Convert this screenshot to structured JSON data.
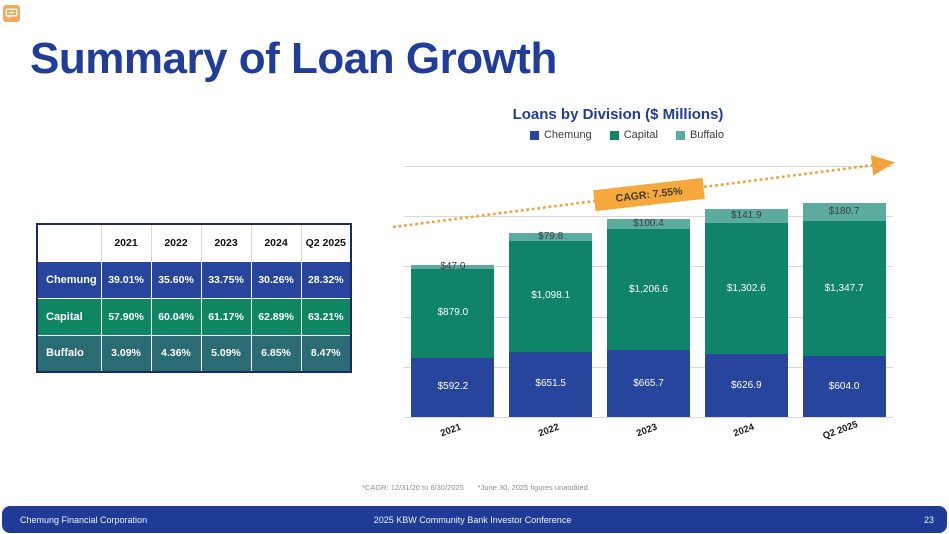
{
  "slide": {
    "title": "Summary of Loan Growth",
    "footnote1": "*CAGR:  12/31/20 to 6/30/2025",
    "footnote2": "*June 30, 2025 figures unaudited"
  },
  "table": {
    "columns": [
      "",
      "2021",
      "2022",
      "2023",
      "2024",
      "Q2 2025"
    ],
    "rows": [
      {
        "label": "Chemung",
        "color": "#27459C",
        "values": [
          "39.01%",
          "35.60%",
          "33.75%",
          "30.26%",
          "28.32%"
        ]
      },
      {
        "label": "Capital",
        "color": "#0E8664",
        "values": [
          "57.90%",
          "60.04%",
          "61.17%",
          "62.89%",
          "63.21%"
        ]
      },
      {
        "label": "Buffalo",
        "color": "#2B6C74",
        "values": [
          "3.09%",
          "4.36%",
          "5.09%",
          "6.85%",
          "8.47%"
        ]
      }
    ]
  },
  "chart_data": {
    "type": "bar",
    "stacked": true,
    "title": "Loans by Division ($ Millions)",
    "categories": [
      "2021",
      "2022",
      "2023",
      "2024",
      "Q2 2025"
    ],
    "series": [
      {
        "name": "Chemung",
        "color": "#27459C",
        "label_color": "#FFFFFF",
        "values": [
          592.2,
          651.5,
          665.7,
          626.9,
          604.0
        ]
      },
      {
        "name": "Capital",
        "color": "#0F8468",
        "label_color": "#FFFFFF",
        "values": [
          879.0,
          1098.1,
          1206.6,
          1302.6,
          1347.7
        ]
      },
      {
        "name": "Buffalo",
        "color": "#5BAB9F",
        "label_color": "#3D3D3D",
        "values": [
          47.0,
          79.8,
          100.4,
          141.9,
          180.7
        ]
      }
    ],
    "totals": [
      1518.2,
      1829.4,
      1972.7,
      2071.4,
      2132.4
    ],
    "ylim": [
      0,
      2500
    ],
    "gridline_step": 500,
    "grid": true,
    "legend_position": "top",
    "value_label_format": "$#,##0.0",
    "annotation": {
      "text": "CAGR: 7.55%",
      "color": "#F5A83C"
    }
  },
  "footer": {
    "left": "Chemung Financial Corporation",
    "center": "2025 KBW Community Bank Investor Conference",
    "page": "23"
  }
}
